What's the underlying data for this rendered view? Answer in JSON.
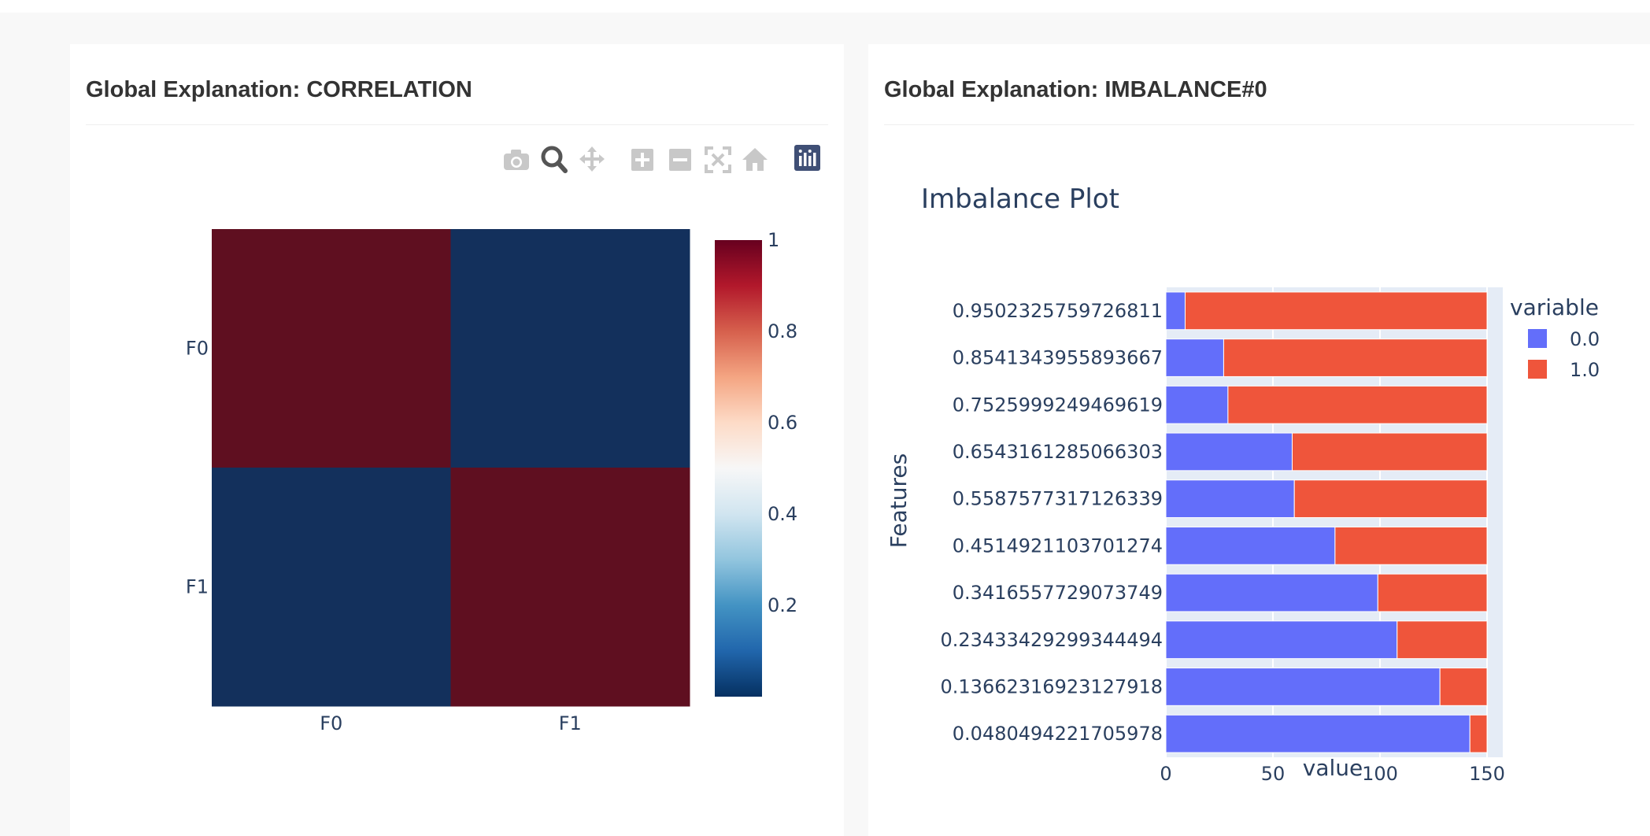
{
  "panels": {
    "left": {
      "title": "Global Explanation: CORRELATION"
    },
    "right": {
      "title": "Global Explanation: IMBALANCE#0"
    }
  },
  "modebar": {
    "icons": [
      "camera-icon",
      "zoom-icon",
      "pan-icon",
      "zoom-in-icon",
      "zoom-out-icon",
      "autoscale-icon",
      "reset-axes-icon",
      "plotly-logo-icon"
    ]
  },
  "chart_data": [
    {
      "type": "heatmap",
      "title": "",
      "x": [
        "F0",
        "F1"
      ],
      "y": [
        "F0",
        "F1"
      ],
      "z": [
        [
          1,
          0
        ],
        [
          0,
          1
        ]
      ],
      "colorscale": "RdBu_r",
      "colorbar": {
        "range": [
          0,
          1
        ],
        "ticks": [
          0.2,
          0.4,
          0.6,
          0.8,
          1
        ],
        "tick_labels": [
          "0.2",
          "0.4",
          "0.6",
          "0.8",
          "1"
        ]
      },
      "colors": {
        "high": "#5f0f20",
        "low": "#13305c"
      }
    },
    {
      "type": "bar",
      "orientation": "horizontal",
      "stacked": true,
      "title": "Imbalance Plot",
      "xlabel": "value",
      "ylabel": "Features",
      "xlim": [
        0,
        150
      ],
      "x_ticks": [
        0,
        50,
        100,
        150
      ],
      "categories": [
        "0.9502325759726811",
        "0.8541343955893667",
        "0.7525999249469619",
        "0.6543161285066303",
        "0.5587577317126339",
        "0.4514921103701274",
        "0.3416557729073749",
        "0.23433429299344494",
        "0.13662316923127918",
        "0.0480494221705978"
      ],
      "series": [
        {
          "name": "0.0",
          "color": "#636efa",
          "values": [
            9,
            27,
            29,
            59,
            60,
            79,
            99,
            108,
            128,
            142
          ]
        },
        {
          "name": "1.0",
          "color": "#ef553b",
          "values": [
            141,
            123,
            121,
            91,
            90,
            71,
            51,
            42,
            22,
            8
          ]
        }
      ],
      "legend": {
        "title": "variable",
        "position": "top-right"
      },
      "plot_bgcolor": "#e5ecf6"
    }
  ]
}
